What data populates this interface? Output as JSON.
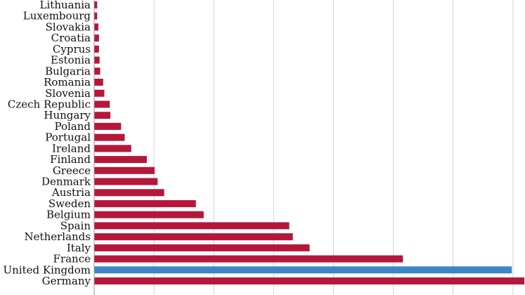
{
  "chart_data": {
    "type": "bar",
    "orientation": "horizontal",
    "title": "",
    "xlabel": "",
    "ylabel": "",
    "xlim": [
      0,
      3600
    ],
    "grid": true,
    "grid_step": 500,
    "default_color": "#b5173a",
    "highlight_color": "#3f86c9",
    "highlight_category": "United Kingdom",
    "categories": [
      "Lithuania",
      "Luxembourg",
      "Slovakia",
      "Croatia",
      "Cyprus",
      "Estonia",
      "Bulgaria",
      "Romania",
      "Slovenia",
      "Czech Republic",
      "Hungary",
      "Poland",
      "Portugal",
      "Ireland",
      "Finland",
      "Greece",
      "Denmark",
      "Austria",
      "Sweden",
      "Belgium",
      "Spain",
      "Netherlands",
      "Italy",
      "France",
      "United Kingdom",
      "Germany"
    ],
    "values": [
      25,
      25,
      35,
      40,
      40,
      45,
      50,
      75,
      85,
      130,
      135,
      225,
      255,
      310,
      440,
      505,
      530,
      585,
      850,
      915,
      1630,
      1660,
      1800,
      2580,
      3490,
      3595
    ]
  }
}
